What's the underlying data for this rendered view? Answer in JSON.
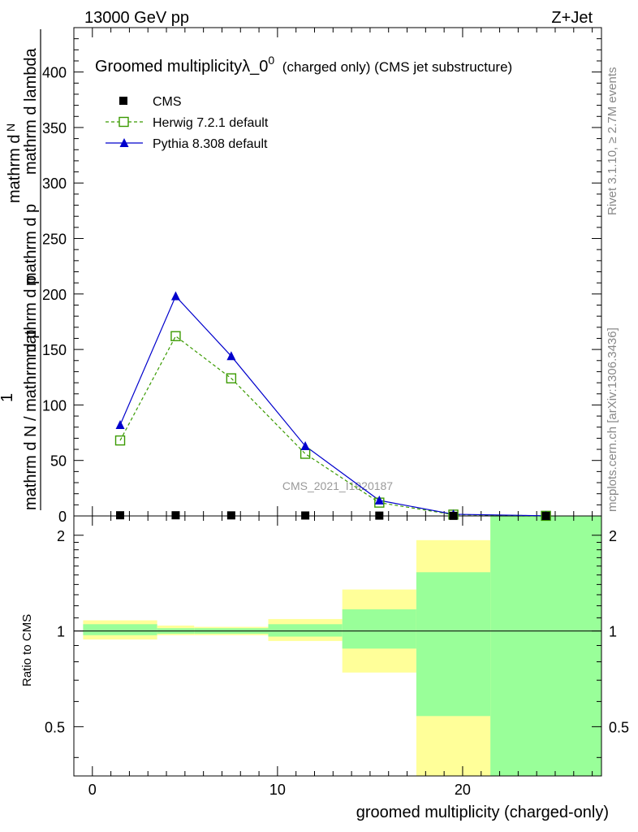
{
  "header": {
    "left": "13000 GeV pp",
    "right": "Z+Jet"
  },
  "side": {
    "rivet": "Rivet 3.1.10, ≥ 2.7M events",
    "mcplots": "mcplots.cern.ch [arXiv:1306.3436]"
  },
  "chart_data": {
    "type": "line",
    "title_main": "Groomed multiplicityλ_0",
    "title_sup": "0",
    "title_note": "(charged only) (CMS jet substructure)",
    "watermark": "CMS_2021_I1920187",
    "ylabel_lines": [
      "mathrm d",
      "N",
      "mathrm d p",
      "mathrm d p",
      "mathrm d lambda",
      "1",
      "mathrm d N / mathrm d p",
      "mathrm d p",
      "mathrm d lambda"
    ],
    "xlabel": "groomed multiplicity (charged-only)",
    "ratio_ylabel": "Ratio to CMS",
    "xlim": [
      -1,
      27.5
    ],
    "ylim": [
      0,
      440
    ],
    "ratio_ylim": [
      0.35,
      2.3
    ],
    "ratio_log": true,
    "x_ticks": [
      0,
      10,
      20
    ],
    "y_ticks": [
      0,
      50,
      100,
      150,
      200,
      250,
      300,
      350,
      400
    ],
    "ratio_ticks": [
      0.5,
      1,
      2
    ],
    "legend": {
      "cms": "CMS",
      "herwig": "Herwig 7.2.1 default",
      "pythia": "Pythia 8.308 default"
    },
    "bins": [
      {
        "lo": -0.5,
        "hi": 3.5
      },
      {
        "lo": 3.5,
        "hi": 5.5
      },
      {
        "lo": 5.5,
        "hi": 9.5
      },
      {
        "lo": 9.5,
        "hi": 13.5
      },
      {
        "lo": 13.5,
        "hi": 17.5
      },
      {
        "lo": 17.5,
        "hi": 21.5
      },
      {
        "lo": 21.5,
        "hi": 27.5
      }
    ],
    "cms_x": [
      1.5,
      4.5,
      7.5,
      11.5,
      15.5,
      19.5,
      24.5
    ],
    "cms_y": [
      0.6,
      0.6,
      0.5,
      0.4,
      0.3,
      0.1,
      0.05
    ],
    "herwig": {
      "x": [
        1.5,
        4.5,
        7.5,
        11.5,
        15.5,
        19.5,
        24.5
      ],
      "y": [
        68,
        162,
        124,
        56,
        12,
        1.2,
        0.1
      ]
    },
    "pythia": {
      "x": [
        1.5,
        4.5,
        7.5,
        11.5,
        15.5,
        19.5,
        24.5
      ],
      "y": [
        82,
        198,
        144,
        63,
        14,
        1.5,
        0.15
      ]
    },
    "band_yellow": [
      {
        "lo": 0.94,
        "hi": 1.08
      },
      {
        "lo": 0.97,
        "hi": 1.04
      },
      {
        "lo": 0.97,
        "hi": 1.03
      },
      {
        "lo": 0.93,
        "hi": 1.09
      },
      {
        "lo": 0.74,
        "hi": 1.35
      },
      {
        "lo": 0.35,
        "hi": 1.93
      },
      {
        "lo": 0.35,
        "hi": 2.3
      }
    ],
    "band_green": [
      {
        "lo": 0.97,
        "hi": 1.05
      },
      {
        "lo": 0.98,
        "hi": 1.02
      },
      {
        "lo": 0.98,
        "hi": 1.02
      },
      {
        "lo": 0.96,
        "hi": 1.05
      },
      {
        "lo": 0.88,
        "hi": 1.17
      },
      {
        "lo": 0.54,
        "hi": 1.53
      },
      {
        "lo": 0.35,
        "hi": 2.3
      }
    ],
    "colors": {
      "cms": "#000000",
      "herwig": "#3a9a00",
      "pythia": "#0000cc",
      "band_yellow": "#ffff99",
      "band_green": "#99ff99"
    }
  }
}
